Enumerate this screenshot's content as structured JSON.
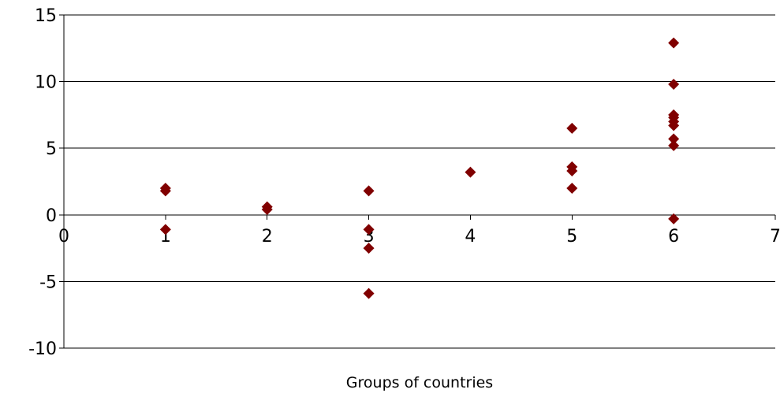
{
  "chart_data": {
    "type": "scatter",
    "title": "",
    "xlabel": "Groups of countries",
    "ylabel": "",
    "xlim": [
      0,
      7
    ],
    "ylim": [
      -10,
      15
    ],
    "xticks": [
      0,
      1,
      2,
      3,
      4,
      5,
      6,
      7
    ],
    "yticks": [
      -10,
      -5,
      0,
      5,
      10,
      15
    ],
    "x_tick_labels": [
      "0",
      "1",
      "2",
      "3",
      "4",
      "5",
      "6",
      "7"
    ],
    "y_tick_labels": [
      "-10",
      "-5",
      "0",
      "5",
      "10",
      "15"
    ],
    "grid": "horizontal",
    "legend": "none",
    "marker": "diamond",
    "marker_color": "#800000",
    "series": [
      {
        "points": [
          {
            "x": 1,
            "y": 2.0
          },
          {
            "x": 1,
            "y": 1.8
          },
          {
            "x": 1,
            "y": -1.1
          },
          {
            "x": 2,
            "y": 0.6
          },
          {
            "x": 2,
            "y": 0.4
          },
          {
            "x": 3,
            "y": 1.8
          },
          {
            "x": 3,
            "y": -1.1
          },
          {
            "x": 3,
            "y": -2.5
          },
          {
            "x": 3,
            "y": -5.9
          },
          {
            "x": 4,
            "y": 3.2
          },
          {
            "x": 5,
            "y": 6.5
          },
          {
            "x": 5,
            "y": 3.6
          },
          {
            "x": 5,
            "y": 3.3
          },
          {
            "x": 5,
            "y": 2.0
          },
          {
            "x": 6,
            "y": 12.9
          },
          {
            "x": 6,
            "y": 9.8
          },
          {
            "x": 6,
            "y": 7.5
          },
          {
            "x": 6,
            "y": 7.3
          },
          {
            "x": 6,
            "y": 7.0
          },
          {
            "x": 6,
            "y": 6.7
          },
          {
            "x": 6,
            "y": 5.7
          },
          {
            "x": 6,
            "y": 5.2
          },
          {
            "x": 6,
            "y": -0.3
          }
        ]
      }
    ]
  }
}
